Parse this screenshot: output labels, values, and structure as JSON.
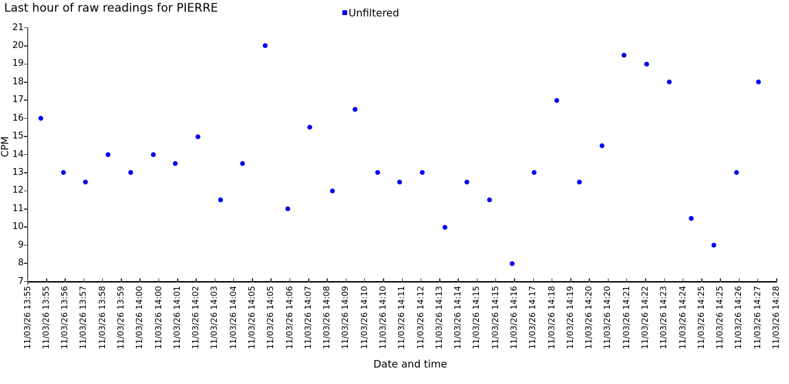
{
  "legend": {
    "label": "Unfiltered",
    "marker_color": "#0000ee"
  },
  "chart_data": {
    "type": "scatter",
    "title": "Last hour of raw readings for PIERRE",
    "xlabel": "Date and time",
    "ylabel": "CPM",
    "ylim": [
      7,
      21
    ],
    "y_ticks": [
      21,
      20,
      19,
      18,
      17,
      16,
      15,
      14,
      13,
      12,
      11,
      10,
      9,
      8,
      7
    ],
    "grid": false,
    "legend_position": "top-center",
    "x_tick_labels": [
      "11/03/26 13:55",
      "11/03/26 13:55",
      "11/03/26 13:56",
      "11/03/26 13:57",
      "11/03/26 13:58",
      "11/03/26 13:59",
      "11/03/26 14:00",
      "11/03/26 14:00",
      "11/03/26 14:01",
      "11/03/26 14:02",
      "11/03/26 14:03",
      "11/03/26 14:04",
      "11/03/26 14:05",
      "11/03/26 14:05",
      "11/03/26 14:06",
      "11/03/26 14:07",
      "11/03/26 14:08",
      "11/03/26 14:09",
      "11/03/26 14:10",
      "11/03/26 14:10",
      "11/03/26 14:11",
      "11/03/26 14:12",
      "11/03/26 14:13",
      "11/03/26 14:14",
      "11/03/26 14:15",
      "11/03/26 14:15",
      "11/03/26 14:16",
      "11/03/26 14:17",
      "11/03/26 14:18",
      "11/03/26 14:19",
      "11/03/26 14:20",
      "11/03/26 14:20",
      "11/03/26 14:21",
      "11/03/26 14:22",
      "11/03/26 14:23",
      "11/03/26 14:24",
      "11/03/26 14:25",
      "11/03/26 14:25",
      "11/03/26 14:26",
      "11/03/26 14:27",
      "11/03/26 14:28"
    ],
    "series": [
      {
        "name": "Unfiltered",
        "color": "#0000ee",
        "marker": "circle",
        "points": [
          {
            "time": "13:55",
            "cpm": 16
          },
          {
            "time": "13:56",
            "cpm": 13
          },
          {
            "time": "13:57",
            "cpm": 12.5
          },
          {
            "time": "13:58",
            "cpm": 14
          },
          {
            "time": "13:59",
            "cpm": 13
          },
          {
            "time": "14:00",
            "cpm": 14
          },
          {
            "time": "14:01",
            "cpm": 13.5
          },
          {
            "time": "14:02",
            "cpm": 15
          },
          {
            "time": "14:03",
            "cpm": 11.5
          },
          {
            "time": "14:04",
            "cpm": 13.5
          },
          {
            "time": "14:05",
            "cpm": 20
          },
          {
            "time": "14:06",
            "cpm": 11
          },
          {
            "time": "14:07",
            "cpm": 15.5
          },
          {
            "time": "14:08",
            "cpm": 12
          },
          {
            "time": "14:09",
            "cpm": 16.5
          },
          {
            "time": "14:10",
            "cpm": 13
          },
          {
            "time": "14:11",
            "cpm": 12.5
          },
          {
            "time": "14:12",
            "cpm": 13
          },
          {
            "time": "14:13",
            "cpm": 10
          },
          {
            "time": "14:14",
            "cpm": 12.5
          },
          {
            "time": "14:15",
            "cpm": 11.5
          },
          {
            "time": "14:16",
            "cpm": 8
          },
          {
            "time": "14:17",
            "cpm": 13
          },
          {
            "time": "14:18",
            "cpm": 17
          },
          {
            "time": "14:19",
            "cpm": 12.5
          },
          {
            "time": "14:20",
            "cpm": 14.5
          },
          {
            "time": "14:21",
            "cpm": 19.5
          },
          {
            "time": "14:22",
            "cpm": 19
          },
          {
            "time": "14:23",
            "cpm": 18
          },
          {
            "time": "14:24",
            "cpm": 10.5
          },
          {
            "time": "14:25",
            "cpm": 9
          },
          {
            "time": "14:26",
            "cpm": 13
          },
          {
            "time": "14:27",
            "cpm": 18
          }
        ]
      }
    ]
  }
}
